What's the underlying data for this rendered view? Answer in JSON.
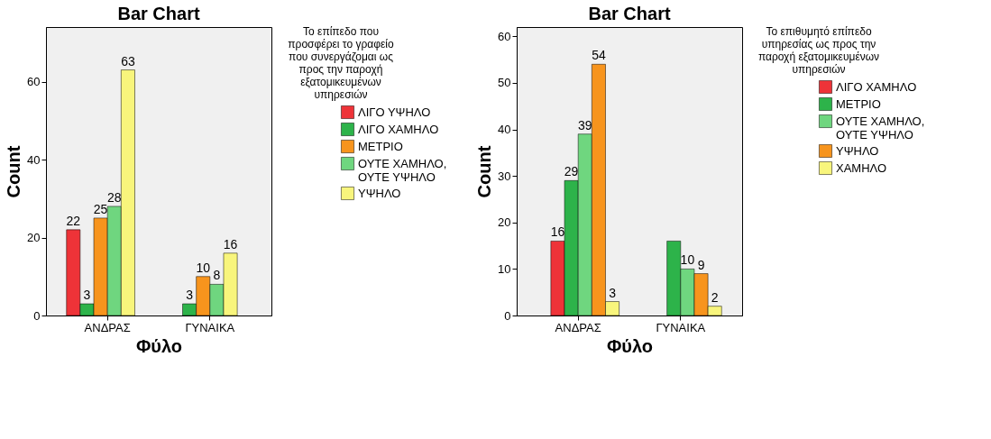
{
  "chart_data": [
    {
      "type": "bar",
      "title": "Bar Chart",
      "xlabel": "Φύλο",
      "ylabel": "Count",
      "legend_title": "Το επίπεδο που προσφέρει το γραφείο που συνεργάζομαι ως προς την παροχή εξατομικευμένων υπηρεσιών",
      "categories": [
        "ΑΝΔΡΑΣ",
        "ΓΥΝΑΙΚΑ"
      ],
      "ylim": [
        0,
        74
      ],
      "yticks": [
        0,
        20,
        40,
        60
      ],
      "grid": false,
      "legend": "right",
      "data_labels": true,
      "series": [
        {
          "name": "ΛΙΓΟ ΥΨΗΛΟ",
          "color": "#ee3338",
          "values": [
            22,
            null
          ]
        },
        {
          "name": "ΛΙΓΟ ΧΑΜΗΛΟ",
          "color": "#2db34a",
          "values": [
            3,
            3
          ]
        },
        {
          "name": "ΜΕΤΡΙΟ",
          "color": "#f7941d",
          "values": [
            25,
            10
          ]
        },
        {
          "name": "ΟΥΤΕ ΧΑΜΗΛΟ, ΟΥΤΕ ΥΨΗΛΟ",
          "color": "#6fd67f",
          "values": [
            28,
            8
          ]
        },
        {
          "name": "ΥΨΗΛΟ",
          "color": "#f8f57c",
          "values": [
            63,
            16
          ]
        }
      ]
    },
    {
      "type": "bar",
      "title": "Bar Chart",
      "xlabel": "Φύλο",
      "ylabel": "Count",
      "legend_title": "Το επιθυμητό επίπεδο υπηρεσίας ως προς την παροχή εξατομικευμένων υπηρεσιών",
      "categories": [
        "ΑΝΔΡΑΣ",
        "ΓΥΝΑΙΚΑ"
      ],
      "ylim": [
        0,
        62
      ],
      "yticks": [
        0,
        10,
        20,
        30,
        40,
        50,
        60
      ],
      "grid": false,
      "legend": "right",
      "series": [
        {
          "name": "ΛΙΓΟ ΧΑΜΗΛΟ",
          "color": "#ee3338",
          "values": [
            16,
            null
          ],
          "value_labels": [
            "16",
            null
          ]
        },
        {
          "name": "ΜΕΤΡΙΟ",
          "color": "#2db34a",
          "values": [
            29,
            16
          ],
          "value_labels": [
            "29",
            null
          ]
        },
        {
          "name": "ΟΥΤΕ ΧΑΜΗΛΟ, ΟΥΤΕ ΥΨΗΛΟ",
          "color": "#6fd67f",
          "values": [
            39,
            10
          ],
          "value_labels": [
            "39",
            "10"
          ]
        },
        {
          "name": "ΥΨΗΛΟ",
          "color": "#f7941d",
          "values": [
            54,
            9
          ],
          "value_labels": [
            "54",
            "9"
          ]
        },
        {
          "name": "ΧΑΜΗΛΟ",
          "color": "#f8f57c",
          "values": [
            3,
            2
          ],
          "value_labels": [
            "3",
            "2"
          ]
        }
      ]
    }
  ]
}
